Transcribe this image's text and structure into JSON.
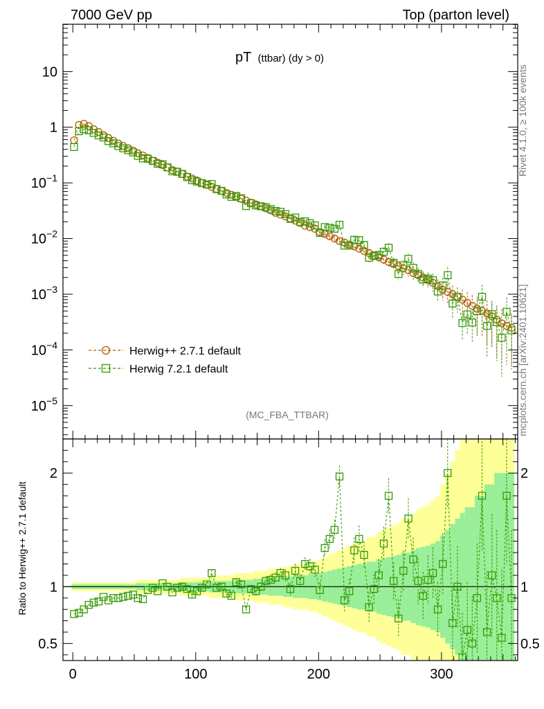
{
  "chart_data": {
    "type": "scatter",
    "header_left": "7000 GeV pp",
    "header_right": "Top (parton level)",
    "title_main": "pT",
    "title_sub": "(ttbar) (dy > 0)",
    "watermark": "(MC_FBA_TTBAR)",
    "side_label_top": "Rivet 4.1.0, ≥ 100k events",
    "side_label_bottom": "mcplots.cern.ch [arXiv:2401.10621]",
    "ratio_ylabel": "Ratio to Herwig++ 2.7.1 default",
    "xlim": [
      -8,
      362
    ],
    "main_ylim_log10": [
      -5.6,
      1.85
    ],
    "ratio_ylim": [
      0.35,
      2.3
    ],
    "x_ticks": [
      0,
      100,
      200,
      300
    ],
    "x_tick_labels": [
      "0",
      "100",
      "200",
      "300"
    ],
    "main_y_tick_labels": [
      {
        "exp": 1,
        "label": "10",
        "sup": ""
      },
      {
        "exp": 0,
        "label": "1",
        "sup": ""
      },
      {
        "exp": -1,
        "label": "10",
        "sup": "−1"
      },
      {
        "exp": -2,
        "label": "10",
        "sup": "−2"
      },
      {
        "exp": -3,
        "label": "10",
        "sup": "−3"
      },
      {
        "exp": -4,
        "label": "10",
        "sup": "−4"
      },
      {
        "exp": -5,
        "label": "10",
        "sup": "−5"
      }
    ],
    "ratio_y_ticks": [
      0.5,
      1,
      2
    ],
    "ratio_y_tick_labels": [
      "0.5",
      "1",
      "2"
    ],
    "legend": [
      "Herwig++ 2.7.1 default",
      "Herwig 7.2.1 default"
    ],
    "series": [
      {
        "name": "Herwig++ 2.7.1 default",
        "color": "#b35900",
        "marker": "circle",
        "x": [
          1,
          5,
          9,
          13,
          17,
          21,
          25,
          29,
          33,
          37,
          41,
          45,
          49,
          53,
          57,
          61,
          65,
          69,
          73,
          77,
          81,
          85,
          89,
          93,
          97,
          101,
          105,
          109,
          113,
          117,
          121,
          125,
          129,
          133,
          137,
          141,
          145,
          149,
          153,
          157,
          161,
          165,
          169,
          173,
          177,
          181,
          185,
          189,
          193,
          197,
          201,
          205,
          209,
          213,
          217,
          221,
          225,
          229,
          233,
          237,
          241,
          245,
          249,
          253,
          257,
          261,
          265,
          269,
          273,
          277,
          281,
          285,
          289,
          293,
          297,
          301,
          305,
          309,
          313,
          317,
          321,
          325,
          329,
          333,
          337,
          341,
          345,
          349,
          353,
          357
        ],
        "y": [
          0.58,
          1.1,
          1.15,
          1.05,
          0.92,
          0.82,
          0.72,
          0.64,
          0.57,
          0.51,
          0.46,
          0.42,
          0.38,
          0.34,
          0.31,
          0.28,
          0.25,
          0.23,
          0.21,
          0.19,
          0.17,
          0.16,
          0.145,
          0.13,
          0.12,
          0.11,
          0.1,
          0.092,
          0.085,
          0.078,
          0.072,
          0.066,
          0.061,
          0.056,
          0.052,
          0.048,
          0.044,
          0.041,
          0.038,
          0.035,
          0.032,
          0.029,
          0.027,
          0.025,
          0.023,
          0.021,
          0.019,
          0.017,
          0.016,
          0.015,
          0.013,
          0.012,
          0.011,
          0.01,
          0.009,
          0.0085,
          0.0078,
          0.0072,
          0.0066,
          0.006,
          0.0055,
          0.005,
          0.0046,
          0.0042,
          0.0038,
          0.0035,
          0.0032,
          0.0029,
          0.0027,
          0.0024,
          0.0022,
          0.002,
          0.0018,
          0.0016,
          0.0014,
          0.0012,
          0.0011,
          0.001,
          0.0009,
          0.0008,
          0.0007,
          0.00062,
          0.00055,
          0.0005,
          0.00045,
          0.0004,
          0.00035,
          0.0003,
          0.00027,
          0.00025
        ],
        "ratio": [
          1,
          1,
          1,
          1,
          1,
          1,
          1,
          1,
          1,
          1,
          1,
          1,
          1,
          1,
          1,
          1,
          1,
          1,
          1,
          1,
          1,
          1,
          1,
          1,
          1,
          1,
          1,
          1,
          1,
          1,
          1,
          1,
          1,
          1,
          1,
          1,
          1,
          1,
          1,
          1,
          1,
          1,
          1,
          1,
          1,
          1,
          1,
          1,
          1,
          1,
          1,
          1,
          1,
          1,
          1,
          1,
          1,
          1,
          1,
          1,
          1,
          1,
          1,
          1,
          1,
          1,
          1,
          1,
          1,
          1,
          1,
          1,
          1,
          1,
          1,
          1,
          1,
          1,
          1,
          1,
          1,
          1,
          1,
          1,
          1,
          1,
          1,
          1,
          1,
          1
        ]
      },
      {
        "name": "Herwig 7.2.1 default",
        "color": "#339900",
        "marker": "square",
        "x": [
          1,
          5,
          9,
          13,
          17,
          21,
          25,
          29,
          33,
          37,
          41,
          45,
          49,
          53,
          57,
          61,
          65,
          69,
          73,
          77,
          81,
          85,
          89,
          93,
          97,
          101,
          105,
          109,
          113,
          117,
          121,
          125,
          129,
          133,
          137,
          141,
          145,
          149,
          153,
          157,
          161,
          165,
          169,
          173,
          177,
          181,
          185,
          189,
          193,
          197,
          201,
          205,
          209,
          213,
          217,
          221,
          225,
          229,
          233,
          237,
          241,
          245,
          249,
          253,
          257,
          261,
          265,
          269,
          273,
          277,
          281,
          285,
          289,
          293,
          297,
          301,
          305,
          309,
          313,
          317,
          321,
          325,
          329,
          333,
          337,
          341,
          345,
          349,
          353,
          357
        ],
        "ratio": [
          0.76,
          0.77,
          0.8,
          0.84,
          0.86,
          0.87,
          0.91,
          0.88,
          0.9,
          0.9,
          0.91,
          0.92,
          0.93,
          0.9,
          0.89,
          0.97,
          0.99,
          0.96,
          1.03,
          1.0,
          0.95,
          0.99,
          1.0,
          0.98,
          0.93,
          0.96,
          0.99,
          1.02,
          1.12,
          0.99,
          1.0,
          0.94,
          0.92,
          1.04,
          1.02,
          0.8,
          0.98,
          0.96,
          1.0,
          1.05,
          1.06,
          1.08,
          1.12,
          1.1,
          0.98,
          1.14,
          1.05,
          1.2,
          1.18,
          1.15,
          0.97,
          1.34,
          1.42,
          1.5,
          1.97,
          0.88,
          0.96,
          1.32,
          1.42,
          1.28,
          0.82,
          0.98,
          1.1,
          1.38,
          1.8,
          1.05,
          0.72,
          1.14,
          1.6,
          1.24,
          1.05,
          0.92,
          1.06,
          1.12,
          0.8,
          1.2,
          2.0,
          0.68,
          1.0,
          0.38,
          0.62,
          0.5,
          0.9,
          1.8,
          0.6,
          1.1,
          0.9,
          0.55,
          1.8,
          0.9
        ],
        "ratio_err": [
          0.02,
          0.02,
          0.02,
          0.02,
          0.02,
          0.02,
          0.02,
          0.02,
          0.02,
          0.02,
          0.02,
          0.02,
          0.02,
          0.03,
          0.03,
          0.03,
          0.03,
          0.03,
          0.03,
          0.03,
          0.03,
          0.03,
          0.04,
          0.04,
          0.04,
          0.04,
          0.04,
          0.04,
          0.05,
          0.05,
          0.05,
          0.05,
          0.05,
          0.06,
          0.06,
          0.06,
          0.06,
          0.07,
          0.07,
          0.07,
          0.08,
          0.08,
          0.08,
          0.09,
          0.09,
          0.1,
          0.1,
          0.1,
          0.11,
          0.11,
          0.12,
          0.13,
          0.14,
          0.15,
          0.16,
          0.17,
          0.18,
          0.19,
          0.2,
          0.2,
          0.22,
          0.22,
          0.24,
          0.25,
          0.26,
          0.27,
          0.28,
          0.3,
          0.3,
          0.32,
          0.34,
          0.35,
          0.36,
          0.38,
          0.4,
          0.45,
          0.5,
          0.55,
          0.6,
          0.65,
          0.7,
          0.7,
          0.8,
          0.8,
          0.9,
          0.9,
          1.0,
          1.0,
          1.0,
          1.0
        ]
      }
    ]
  }
}
